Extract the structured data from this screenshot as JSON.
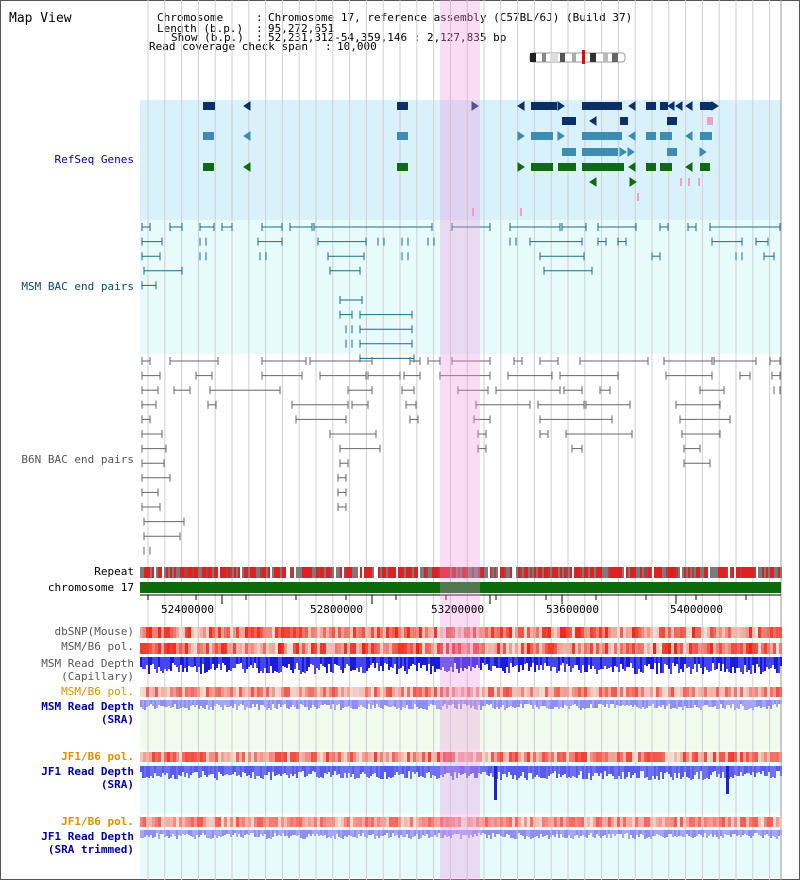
{
  "view_title": "Map View",
  "header": {
    "chromosome_label": "Chromosome",
    "chromosome_value": "Chromosome 17, reference assembly (C57BL/6J) (Build 37)",
    "length_label": "Length (b.p.)",
    "length_value": "95,272,651",
    "show_label": "Show (b.p.)",
    "show_value": "52,231,312-54,359,146 : 2,127,835 bp",
    "coverage_label": "Read coverage check span",
    "coverage_value": "10,000"
  },
  "tracks": {
    "refseq": "RefSeq Genes",
    "msm_bac": "MSM BAC end pairs",
    "b6n_bac": "B6N BAC end pairs",
    "repeat": "Repeat",
    "chromosome": "chromosome 17",
    "dbsnp": "dbSNP(Mouse)",
    "msm_pol": "MSM/B6 pol.",
    "msm_depth_cap_1": "MSM Read Depth",
    "msm_depth_cap_2": "(Capillary)",
    "msm_pol_sra": "MSM/B6 pol.",
    "msm_depth_sra_1": "MSM Read Depth",
    "msm_depth_sra_2": "(SRA)",
    "jf1_pol": "JF1/B6 pol.",
    "jf1_depth_1": "JF1 Read Depth",
    "jf1_depth_2": "(SRA)",
    "jf1_pol_trim": "JF1/B6 pol.",
    "jf1_depth_trim_1": "JF1 Read Depth",
    "jf1_depth_trim_2": "(SRA trimmed)"
  },
  "axis_ticks": [
    "52400000",
    "52800000",
    "53200000",
    "53600000",
    "54000000"
  ],
  "colors": {
    "refseq_bg": "#d9f1fb",
    "bac_bg": "#e8fbfb",
    "highlight": "#f8d6f1",
    "gene_dark": "#0c2f66",
    "gene_mid": "#3a8cb0",
    "gene_green": "#0f6b10",
    "msm_bac": "#1a6a8c",
    "b6n_bac": "#666666",
    "chromosome": "#0b6b0b",
    "snp_red": "#e83030",
    "depth_blue": "#1a1ae0",
    "depth_light": "#8f8ff0"
  }
}
